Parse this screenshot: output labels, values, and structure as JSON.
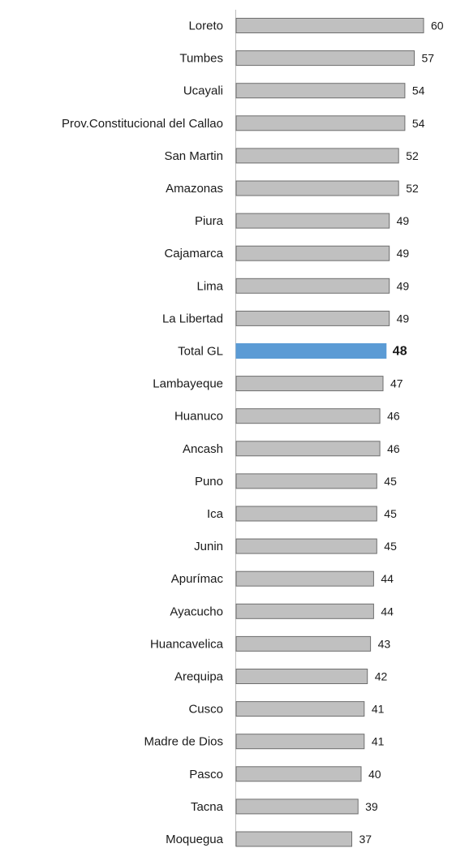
{
  "chart_data": {
    "type": "bar",
    "orientation": "horizontal",
    "title": "",
    "xlabel": "",
    "ylabel": "",
    "grid": false,
    "legend": "none",
    "xlim": [
      0,
      60
    ],
    "bar_color": "#c0c0c0",
    "bar_border_color": "#6e6e6e",
    "highlight_color": "#5b9bd5",
    "highlight_label_color": "#2e75b6",
    "highlight_category": "Total GL",
    "categories": [
      "Loreto",
      "Tumbes",
      "Ucayali",
      "Prov.Constitucional del Callao",
      "San Martin",
      "Amazonas",
      "Piura",
      "Cajamarca",
      "Lima",
      "La Libertad",
      "Total GL",
      "Lambayeque",
      "Huanuco",
      "Ancash",
      "Puno",
      "Ica",
      "Junin",
      "Apurímac",
      "Ayacucho",
      "Huancavelica",
      "Arequipa",
      "Cusco",
      "Madre de Dios",
      "Pasco",
      "Tacna",
      "Moquegua"
    ],
    "values": [
      60,
      57,
      54,
      54,
      52,
      52,
      49,
      49,
      49,
      49,
      48,
      47,
      46,
      46,
      45,
      45,
      45,
      44,
      44,
      43,
      42,
      41,
      41,
      40,
      39,
      37
    ]
  }
}
